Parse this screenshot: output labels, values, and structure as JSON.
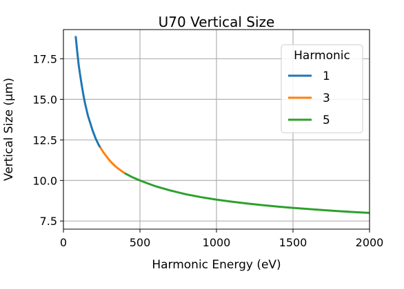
{
  "chart_data": {
    "type": "line",
    "title": "U70 Vertical Size",
    "xlabel": "Harmonic Energy (eV)",
    "ylabel": "Vertical Size (μm)",
    "xlim": [
      0,
      2000
    ],
    "ylim": [
      7.0,
      19.3
    ],
    "xticks": [
      0,
      500,
      1000,
      1500,
      2000
    ],
    "xtick_labels": [
      "0",
      "500",
      "1000",
      "1500",
      "2000"
    ],
    "yticks": [
      7.5,
      10.0,
      12.5,
      15.0,
      17.5
    ],
    "ytick_labels": [
      "7.5",
      "10.0",
      "12.5",
      "15.0",
      "17.5"
    ],
    "grid": true,
    "legend": {
      "title": "Harmonic",
      "placement": "top-right",
      "entries": [
        "1",
        "3",
        "5"
      ]
    },
    "series": [
      {
        "name": "1",
        "color": "#1f77b4",
        "x": [
          80,
          90,
          100,
          110,
          120,
          130,
          140,
          150,
          160,
          170,
          180,
          190,
          200,
          210,
          220,
          230,
          240
        ],
        "y": [
          18.9,
          17.95,
          17.1,
          16.45,
          15.85,
          15.3,
          14.8,
          14.4,
          14.0,
          13.7,
          13.4,
          13.1,
          12.85,
          12.6,
          12.4,
          12.2,
          12.05
        ]
      },
      {
        "name": "3",
        "color": "#ff7f0e",
        "x": [
          240,
          260,
          280,
          300,
          320,
          340,
          360,
          380,
          400
        ],
        "y": [
          12.05,
          11.75,
          11.5,
          11.25,
          11.05,
          10.87,
          10.72,
          10.58,
          10.45
        ]
      },
      {
        "name": "5",
        "color": "#2ca02c",
        "x": [
          400,
          450,
          500,
          550,
          600,
          700,
          800,
          900,
          1000,
          1100,
          1200,
          1300,
          1400,
          1500,
          1600,
          1700,
          1800,
          1900,
          2000
        ],
        "y": [
          10.45,
          10.2,
          10.0,
          9.82,
          9.65,
          9.38,
          9.15,
          8.97,
          8.82,
          8.69,
          8.58,
          8.48,
          8.39,
          8.31,
          8.24,
          8.17,
          8.11,
          8.05,
          8.0
        ]
      }
    ]
  }
}
